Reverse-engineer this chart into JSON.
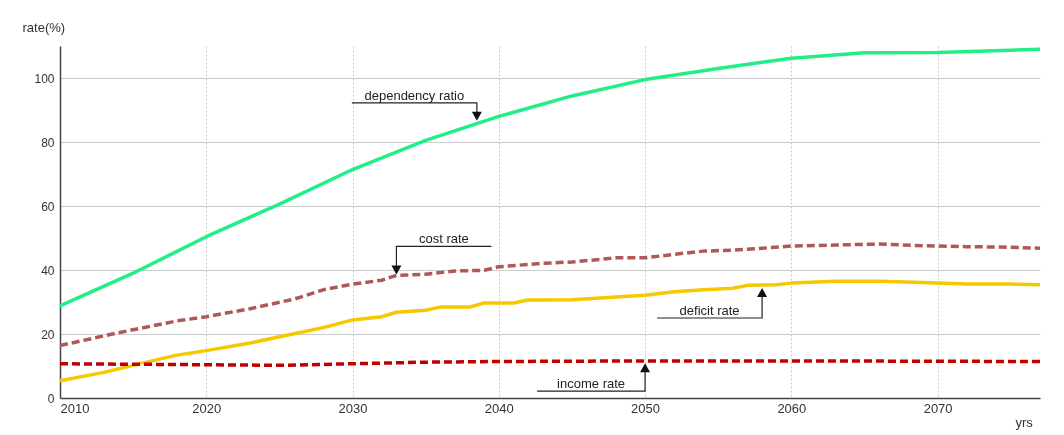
{
  "chart_data": {
    "type": "line",
    "xlabel": "yrs",
    "ylabel": "rate(%)",
    "xlim": [
      2010,
      2077
    ],
    "xticks": [
      2010,
      2020,
      2030,
      2040,
      2050,
      2060,
      2070
    ],
    "ylim": [
      0,
      110
    ],
    "yticks": [
      0,
      20,
      40,
      60,
      80,
      100
    ],
    "grid": true,
    "series": [
      {
        "color": "#22ee88",
        "line_style": "solid",
        "x": [
          2010,
          2015,
          2020,
          2025,
          2030,
          2035,
          2040,
          2045,
          2050,
          2055,
          2060,
          2065,
          2070,
          2077
        ],
        "values": [
          28.8,
          39,
          50.4,
          60.6,
          71.4,
          80.5,
          88,
          94.4,
          99.5,
          103,
          106.2,
          107.9,
          108,
          109
        ]
      },
      {
        "color": "#b05858",
        "line_style": "dashed",
        "x": [
          2010,
          2014,
          2018,
          2020,
          2023,
          2026,
          2028,
          2030,
          2032,
          2033,
          2035,
          2037,
          2039,
          2040,
          2043,
          2045,
          2048,
          2050,
          2052,
          2054,
          2056,
          2058,
          2060,
          2063,
          2066,
          2069,
          2072,
          2075,
          2077
        ],
        "values": [
          16.4,
          20.4,
          24.1,
          25.4,
          27.9,
          30.9,
          33.8,
          35.6,
          36.8,
          38.3,
          38.7,
          39.7,
          39.9,
          41,
          42.1,
          42.5,
          43.8,
          43.8,
          44.9,
          45.9,
          46.2,
          46.8,
          47.5,
          47.8,
          48.1,
          47.6,
          47.3,
          47.1,
          46.8
        ]
      },
      {
        "color": "#f5c800",
        "line_style": "solid",
        "x": [
          2010,
          2013,
          2016,
          2018,
          2020,
          2023,
          2026,
          2028,
          2030,
          2032,
          2033,
          2035,
          2036,
          2038,
          2039,
          2041,
          2042,
          2045,
          2048,
          2050,
          2052,
          2054,
          2056,
          2057,
          2059,
          2060,
          2063,
          2066,
          2069,
          2072,
          2075,
          2077
        ],
        "values": [
          5.4,
          8,
          11.3,
          13.4,
          14.8,
          17.2,
          20.1,
          22,
          24.4,
          25.4,
          26.8,
          27.4,
          28.4,
          28.4,
          29.7,
          29.7,
          30.6,
          30.7,
          31.6,
          32.1,
          33.2,
          33.8,
          34.3,
          35.2,
          35.4,
          35.9,
          36.5,
          36.5,
          36.1,
          35.6,
          35.6,
          35.4
        ]
      },
      {
        "color": "#c00000",
        "line_style": "dashed",
        "x": [
          2010,
          2020,
          2025,
          2030,
          2035,
          2040,
          2050,
          2060,
          2077
        ],
        "values": [
          10.7,
          10.4,
          10.2,
          10.7,
          11.2,
          11.4,
          11.6,
          11.6,
          11.4
        ]
      }
    ],
    "annotations": [
      {
        "text": "dependency ratio",
        "x": 2038.5,
        "y": 86
      },
      {
        "text": "cost rate",
        "x": 2033,
        "y": 38
      },
      {
        "text": "deficit rate",
        "x": 2058,
        "y": 35
      },
      {
        "text": "income rate",
        "x": 2050,
        "y": 11.5
      }
    ]
  }
}
